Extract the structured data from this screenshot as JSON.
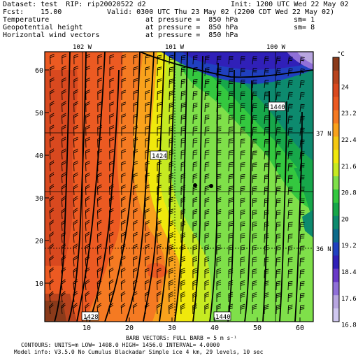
{
  "header": {
    "line1_left": "Dataset: test  RIP: rip20020522 d2",
    "line1_right": "Init: 1200 UTC Wed 22 May 02",
    "line2_left": "Fcst:    15.00",
    "line2_right": "Valid: 0300 UTC Thu 23 May 02 (2200 CDT Wed 22 May 02)",
    "fields": [
      {
        "name": "Temperature",
        "level": "at pressure =  850 hPa",
        "sm": "sm= 1"
      },
      {
        "name": "Geopotential height",
        "level": "at pressure =  850 hPa",
        "sm": "sm= 8"
      },
      {
        "name": "Horizontal wind vectors",
        "level": "at pressure =  850 hPa",
        "sm": ""
      }
    ]
  },
  "map": {
    "x_ticks": [
      "10",
      "20",
      "30",
      "40",
      "50",
      "60"
    ],
    "y_ticks": [
      "10",
      "20",
      "30",
      "40",
      "50",
      "60"
    ],
    "longitude_labels": [
      "102 W",
      "101 W",
      "100 W"
    ],
    "latitude_labels": [
      "37 N",
      "36 N"
    ],
    "contour_labels": [
      "1440",
      "1424",
      "1428",
      "1440"
    ],
    "colors": {
      "dark_brown": "#8a3a1a",
      "red_orange": "#e8502a",
      "orange": "#f7851f",
      "yellow": "#f2e40c",
      "light_green": "#7fe04a",
      "green": "#1eb839",
      "teal": "#0f8a6b",
      "blue": "#2630c8",
      "light_purple": "#b8a6e0"
    }
  },
  "colorbar": {
    "unit": "°C",
    "labels": [
      "24",
      "23.2",
      "22.4",
      "21.6",
      "20.8",
      "20",
      "19.2",
      "18.4",
      "17.6",
      "16.8"
    ],
    "colors": [
      "#8a3a1a",
      "#b8431d",
      "#d9491f",
      "#ec5a22",
      "#f57a22",
      "#f9a21c",
      "#f5c812",
      "#f0e80c",
      "#c6ea22",
      "#7fe04a",
      "#34c83f",
      "#17a74a",
      "#0d8a6e",
      "#0c6a8a",
      "#2040c0",
      "#3020b8",
      "#6a3ac8",
      "#9070d8",
      "#b8a6e0",
      "#d0c8f0"
    ]
  },
  "footer": {
    "line1": "BARB VECTORS: FULL BARB = 5 m s⁻¹",
    "line2": "CONTOURS: UNITS=m  LOW= 1408.0      HIGH= 1456.0      INTERVAL=  4.0000",
    "line3": "Model info: V3.5.0 No Cumulus Blackadar  Simple ice   4 km,  29 levels,  10 sec"
  }
}
